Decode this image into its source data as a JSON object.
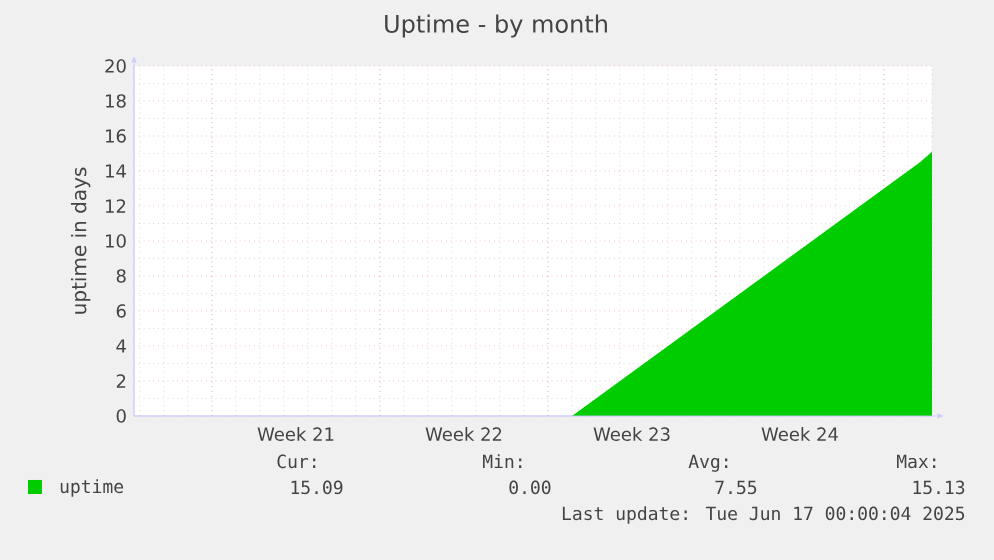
{
  "chart_data": {
    "type": "area",
    "title": "Uptime - by month",
    "ylabel": "uptime in days",
    "categories": [
      null,
      null,
      null,
      null,
      null,
      null,
      null,
      null,
      null,
      null,
      null,
      null,
      null,
      "Week 21",
      null,
      null,
      null,
      null,
      null,
      null,
      null,
      null,
      null,
      null,
      null,
      null,
      null,
      "Week 22",
      null,
      null,
      null,
      null,
      null,
      null,
      null,
      null,
      null,
      null,
      null,
      null,
      null,
      "Week 23",
      null,
      null,
      null,
      null,
      null,
      null,
      null,
      null,
      null,
      null,
      null,
      null,
      null,
      "Week 24",
      null,
      null,
      null,
      null,
      null,
      null,
      null,
      null,
      null,
      null,
      null
    ],
    "series": [
      {
        "name": "uptime",
        "color": "#00cc00",
        "values": [
          0,
          0,
          0,
          0,
          0,
          0,
          0,
          0,
          0,
          0,
          0,
          0,
          0,
          0,
          0,
          0,
          0,
          0,
          0,
          0,
          0,
          0,
          0,
          0,
          0,
          0,
          0,
          0,
          0,
          0,
          0,
          0,
          0,
          0,
          0,
          0,
          0,
          0.5,
          1,
          1.5,
          2,
          2.5,
          3,
          3.5,
          4,
          4.5,
          5,
          5.5,
          6,
          6.5,
          7,
          7.5,
          8,
          8.5,
          9,
          9.5,
          10,
          10.5,
          11,
          11.5,
          12,
          12.5,
          13,
          13.5,
          14,
          14.5,
          15.1
        ]
      }
    ],
    "ylim": [
      0,
      20
    ],
    "yticks": [
      0,
      2,
      4,
      6,
      8,
      10,
      12,
      14,
      16,
      18,
      20
    ],
    "grid": true,
    "legend": "bottom left",
    "annotations": [
      "Cur:",
      "Min:",
      "Avg:",
      "Max:",
      "15.09",
      "0.00",
      "7.55",
      "15.13",
      "Last update: Tue Jun 17 00:00:04 2025"
    ]
  }
}
